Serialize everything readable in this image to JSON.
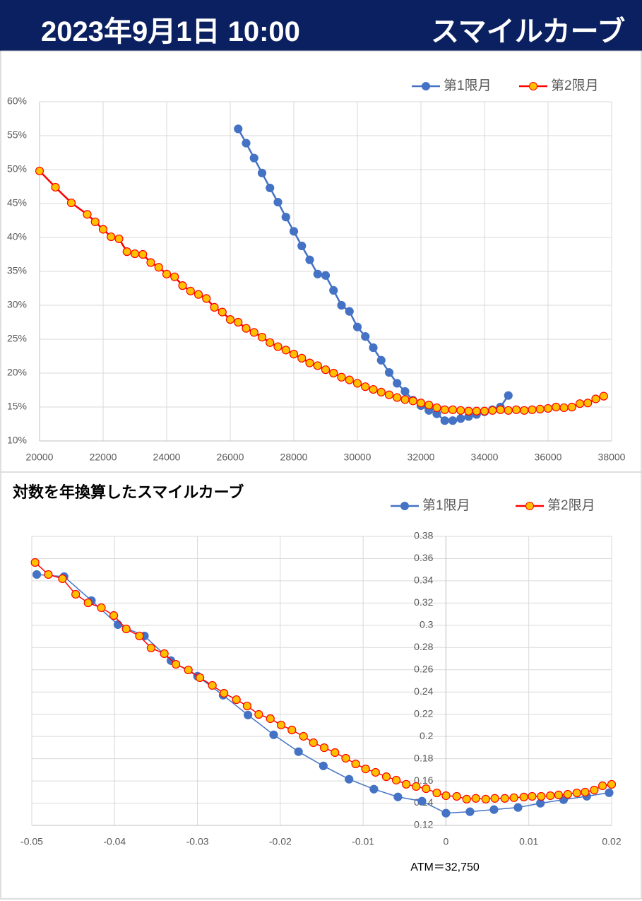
{
  "header": {
    "datetime": "2023年9月1日 10:00",
    "title": "スマイルカーブ"
  },
  "chart_data": [
    {
      "type": "line",
      "xlim": [
        20000,
        38000
      ],
      "xticks": [
        20000,
        22000,
        24000,
        26000,
        28000,
        30000,
        32000,
        34000,
        36000,
        38000
      ],
      "ylim": [
        10,
        60
      ],
      "yticks": [
        {
          "value": 10,
          "label": "10%"
        },
        {
          "value": 15,
          "label": "15%"
        },
        {
          "value": 20,
          "label": "20%"
        },
        {
          "value": 25,
          "label": "25%"
        },
        {
          "value": 30,
          "label": "30%"
        },
        {
          "value": 35,
          "label": "35%"
        },
        {
          "value": 40,
          "label": "40%"
        },
        {
          "value": 45,
          "label": "45%"
        },
        {
          "value": 50,
          "label": "50%"
        },
        {
          "value": 55,
          "label": "55%"
        },
        {
          "value": 60,
          "label": "60%"
        }
      ],
      "grid": true,
      "legend": "top-right",
      "series": [
        {
          "name": "第1限月",
          "color": "#4472c4",
          "marker_color": "#4472c4",
          "x": [
            26250,
            26500,
            26750,
            27000,
            27250,
            27500,
            27750,
            28000,
            28250,
            28500,
            28750,
            29000,
            29250,
            29500,
            29750,
            30000,
            30250,
            30500,
            30750,
            31000,
            31250,
            31500,
            31750,
            32000,
            32250,
            32500,
            32750,
            33000,
            33250,
            33500,
            33750,
            34000,
            34250,
            34500,
            34750
          ],
          "values": [
            56.0,
            53.9,
            51.7,
            49.5,
            47.3,
            45.2,
            43.0,
            40.9,
            38.75,
            36.7,
            34.6,
            34.4,
            32.2,
            30.0,
            29.1,
            26.8,
            25.4,
            23.75,
            21.9,
            20.1,
            18.5,
            17.3,
            16.0,
            15.2,
            14.5,
            14.0,
            13.0,
            13.0,
            13.3,
            13.6,
            13.9,
            14.3,
            14.6,
            15.0,
            16.7
          ]
        },
        {
          "name": "第2限月",
          "color": "#ff0000",
          "marker_color": "#ffc000",
          "x": [
            20000,
            20500,
            21000,
            21500,
            21750,
            22000,
            22250,
            22500,
            22750,
            23000,
            23250,
            23500,
            23750,
            24000,
            24250,
            24500,
            24750,
            25000,
            25250,
            25500,
            25750,
            26000,
            26250,
            26500,
            26750,
            27000,
            27250,
            27500,
            27750,
            28000,
            28250,
            28500,
            28750,
            29000,
            29250,
            29500,
            29750,
            30000,
            30250,
            30500,
            30750,
            31000,
            31250,
            31500,
            31750,
            32000,
            32250,
            32500,
            32750,
            33000,
            33250,
            33500,
            33750,
            34000,
            34250,
            34500,
            34750,
            35000,
            35250,
            35500,
            35750,
            36000,
            36250,
            36500,
            36750,
            37000,
            37250,
            37500,
            37750
          ],
          "values": [
            49.8,
            47.4,
            45.1,
            43.4,
            42.3,
            41.2,
            40.1,
            39.8,
            37.9,
            37.6,
            37.5,
            36.3,
            35.6,
            34.6,
            34.2,
            32.9,
            32.1,
            31.6,
            31.0,
            29.7,
            29.0,
            27.9,
            27.5,
            26.6,
            26.0,
            25.3,
            24.5,
            23.9,
            23.4,
            22.8,
            22.2,
            21.5,
            21.1,
            20.5,
            20.0,
            19.4,
            19.0,
            18.5,
            18.0,
            17.6,
            17.2,
            16.8,
            16.4,
            16.1,
            15.9,
            15.6,
            15.3,
            14.9,
            14.6,
            14.6,
            14.5,
            14.4,
            14.4,
            14.4,
            14.5,
            14.6,
            14.5,
            14.6,
            14.5,
            14.6,
            14.7,
            14.8,
            15.0,
            14.9,
            15.0,
            15.5,
            15.6,
            16.2,
            16.6
          ]
        }
      ]
    },
    {
      "type": "line",
      "title": "対数を年換算したスマイルカーブ",
      "annotation": "ATM＝32,750",
      "xlim": [
        -0.05,
        0.02
      ],
      "xticks": [
        -0.05,
        -0.04,
        -0.03,
        -0.02,
        -0.01,
        0,
        0.01,
        0.02
      ],
      "ylim": [
        0.12,
        0.38
      ],
      "yticks": [
        0.12,
        0.14,
        0.16,
        0.18,
        0.2,
        0.22,
        0.24,
        0.26,
        0.28,
        0.3,
        0.32,
        0.34,
        0.36,
        0.38
      ],
      "yaxis_cross": 0,
      "grid": true,
      "legend": "top-right",
      "series": [
        {
          "name": "第1限月",
          "color": "#4472c4",
          "marker_color": "#4472c4",
          "x": [
            -0.0494,
            -0.0461,
            -0.0428,
            -0.0396,
            -0.0364,
            -0.0332,
            -0.03,
            -0.0269,
            -0.0239,
            -0.0208,
            -0.0178,
            -0.0148,
            -0.0117,
            -0.0087,
            -0.0058,
            -0.0029,
            0,
            0.0029,
            0.0058,
            0.0087,
            0.0114,
            0.0142,
            0.017,
            0.0197
          ],
          "values": [
            0.3457,
            0.3438,
            0.3222,
            0.3006,
            0.2904,
            0.2682,
            0.2542,
            0.2371,
            0.2193,
            0.2015,
            0.1863,
            0.1735,
            0.1615,
            0.1526,
            0.1456,
            0.1418,
            0.131,
            0.1323,
            0.1342,
            0.1361,
            0.1399,
            0.1431,
            0.1462,
            0.1494
          ]
        },
        {
          "name": "第2限月",
          "color": "#ff0000",
          "marker_color": "#ffc000",
          "x": [
            -0.0496,
            -0.048,
            -0.0463,
            -0.0447,
            -0.0432,
            -0.0416,
            -0.0401,
            -0.0386,
            -0.037,
            -0.0356,
            -0.034,
            -0.0326,
            -0.0311,
            -0.0297,
            -0.0282,
            -0.0268,
            -0.0253,
            -0.024,
            -0.0226,
            -0.0212,
            -0.0199,
            -0.0186,
            -0.0172,
            -0.016,
            -0.0147,
            -0.0134,
            -0.0121,
            -0.0109,
            -0.0097,
            -0.0085,
            -0.0072,
            -0.006,
            -0.0048,
            -0.0036,
            -0.0024,
            -0.0011,
            0,
            0.0013,
            0.0025,
            0.0036,
            0.0048,
            0.0059,
            0.0071,
            0.0082,
            0.0094,
            0.0104,
            0.0115,
            0.0126,
            0.0136,
            0.0147,
            0.0158,
            0.0168,
            0.0179,
            0.0189,
            0.02
          ],
          "values": [
            0.3565,
            0.3457,
            0.3419,
            0.3279,
            0.3202,
            0.3158,
            0.3088,
            0.2967,
            0.2904,
            0.2796,
            0.2745,
            0.2649,
            0.2598,
            0.2529,
            0.2459,
            0.2389,
            0.2331,
            0.2274,
            0.2198,
            0.216,
            0.2103,
            0.2058,
            0.2001,
            0.1944,
            0.1899,
            0.1855,
            0.1804,
            0.1753,
            0.1708,
            0.1677,
            0.1638,
            0.1607,
            0.157,
            0.155,
            0.153,
            0.1492,
            0.1467,
            0.1461,
            0.1436,
            0.1443,
            0.1436,
            0.1443,
            0.1443,
            0.1449,
            0.1455,
            0.1461,
            0.1461,
            0.1467,
            0.1474,
            0.148,
            0.1492,
            0.1499,
            0.1518,
            0.1556,
            0.1569
          ]
        }
      ]
    }
  ]
}
